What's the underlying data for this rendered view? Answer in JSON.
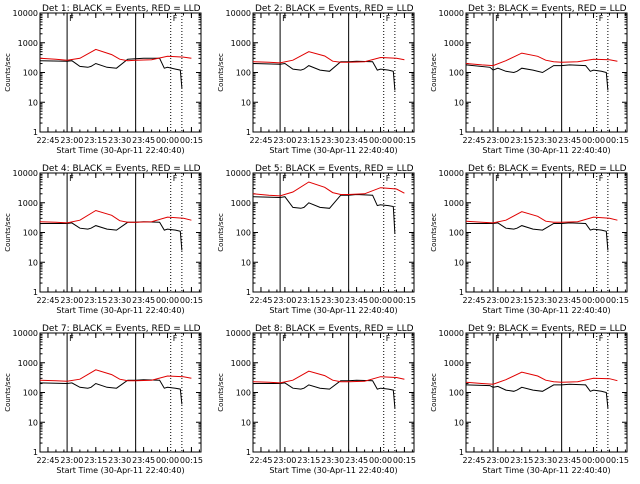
{
  "panel_title_template": "Det {n}: BLACK = Events, RED = LLD",
  "y_axis_label": "Counts/sec",
  "x_axis_label": "Start Time (30-Apr-11 22:40:40)",
  "x_tick_labels": [
    "22:45",
    "23:00",
    "23:15",
    "23:30",
    "23:45",
    "00:00",
    "00:15"
  ],
  "y_tick_labels": [
    "1",
    "10",
    "100",
    "1000",
    "10000"
  ],
  "colors": {
    "events": "#000000",
    "lld": "#e00000",
    "axis": "#000000"
  },
  "chart_data": [
    {
      "type": "line",
      "title": "Det 1: BLACK = Events, RED = LLD",
      "ylim": [
        1,
        10000
      ],
      "yscale": "log",
      "solid_markers": [
        "22:57",
        "23:40"
      ],
      "dotted_markers": [
        "00:02",
        "00:09"
      ],
      "flag_label": "F",
      "series": [
        {
          "name": "BLACK = Events",
          "x": [
            "22:40",
            "22:57",
            "23:00",
            "23:05",
            "23:10",
            "23:12",
            "23:15",
            "23:22",
            "23:28",
            "23:35",
            "23:40",
            "23:45",
            "23:55",
            "23:58",
            "00:00",
            "00:05",
            "00:08",
            "00:09"
          ],
          "y": [
            250,
            240,
            250,
            160,
            150,
            160,
            200,
            150,
            140,
            280,
            290,
            300,
            300,
            140,
            150,
            130,
            120,
            30
          ]
        },
        {
          "name": "RED = LLD",
          "x": [
            "22:40",
            "22:50",
            "22:57",
            "23:05",
            "23:15",
            "23:25",
            "23:30",
            "23:35",
            "23:40",
            "23:50",
            "00:00",
            "00:10",
            "00:15"
          ],
          "y": [
            300,
            280,
            260,
            300,
            600,
            400,
            280,
            250,
            260,
            270,
            350,
            330,
            300
          ]
        }
      ]
    },
    {
      "type": "line",
      "title": "Det 2: BLACK = Events, RED = LLD",
      "ylim": [
        1,
        10000
      ],
      "yscale": "log",
      "solid_markers": [
        "22:57",
        "23:40"
      ],
      "dotted_markers": [
        "00:02",
        "00:09"
      ],
      "flag_label": "F",
      "series": [
        {
          "name": "BLACK = Events",
          "x": [
            "22:40",
            "22:57",
            "23:00",
            "23:05",
            "23:10",
            "23:12",
            "23:15",
            "23:22",
            "23:28",
            "23:35",
            "23:40",
            "23:45",
            "23:55",
            "23:58",
            "00:00",
            "00:05",
            "00:08",
            "00:09"
          ],
          "y": [
            200,
            190,
            200,
            130,
            120,
            130,
            170,
            120,
            110,
            230,
            230,
            240,
            230,
            120,
            130,
            120,
            110,
            25
          ]
        },
        {
          "name": "RED = LLD",
          "x": [
            "22:40",
            "22:50",
            "22:57",
            "23:05",
            "23:15",
            "23:25",
            "23:30",
            "23:35",
            "23:40",
            "23:50",
            "00:00",
            "00:10",
            "00:15"
          ],
          "y": [
            230,
            220,
            210,
            260,
            500,
            360,
            240,
            220,
            220,
            230,
            320,
            300,
            270
          ]
        }
      ]
    },
    {
      "type": "line",
      "title": "Det 3: BLACK = Events, RED = LLD",
      "ylim": [
        1,
        10000
      ],
      "yscale": "log",
      "solid_markers": [
        "22:57",
        "23:40"
      ],
      "dotted_markers": [
        "00:02",
        "00:09"
      ],
      "flag_label": "F",
      "series": [
        {
          "name": "BLACK = Events",
          "x": [
            "22:40",
            "22:55",
            "22:57",
            "23:00",
            "23:05",
            "23:10",
            "23:12",
            "23:15",
            "23:22",
            "23:28",
            "23:35",
            "23:40",
            "23:45",
            "23:55",
            "23:58",
            "00:00",
            "00:05",
            "00:08",
            "00:09"
          ],
          "y": [
            180,
            150,
            120,
            140,
            110,
            100,
            110,
            140,
            120,
            100,
            170,
            170,
            180,
            170,
            110,
            120,
            110,
            100,
            25
          ]
        },
        {
          "name": "RED = LLD",
          "x": [
            "22:40",
            "22:50",
            "22:57",
            "23:05",
            "23:15",
            "23:25",
            "23:30",
            "23:35",
            "23:40",
            "23:50",
            "00:00",
            "00:10",
            "00:15"
          ],
          "y": [
            200,
            180,
            170,
            250,
            450,
            350,
            260,
            230,
            220,
            230,
            280,
            270,
            240
          ]
        }
      ]
    },
    {
      "type": "line",
      "title": "Det 4: BLACK = Events, RED = LLD",
      "ylim": [
        1,
        10000
      ],
      "yscale": "log",
      "solid_markers": [
        "22:57",
        "23:40"
      ],
      "dotted_markers": [
        "00:02",
        "00:09"
      ],
      "flag_label": "F",
      "series": [
        {
          "name": "BLACK = Events",
          "x": [
            "22:40",
            "22:57",
            "23:00",
            "23:05",
            "23:10",
            "23:12",
            "23:15",
            "23:22",
            "23:28",
            "23:35",
            "23:40",
            "23:45",
            "23:55",
            "23:58",
            "00:00",
            "00:05",
            "00:08",
            "00:09"
          ],
          "y": [
            200,
            200,
            210,
            140,
            130,
            140,
            170,
            130,
            120,
            220,
            220,
            230,
            220,
            120,
            130,
            120,
            110,
            25
          ]
        },
        {
          "name": "RED = LLD",
          "x": [
            "22:40",
            "22:50",
            "22:57",
            "23:05",
            "23:15",
            "23:25",
            "23:30",
            "23:35",
            "23:40",
            "23:50",
            "00:00",
            "00:10",
            "00:15"
          ],
          "y": [
            230,
            220,
            210,
            260,
            550,
            380,
            250,
            220,
            220,
            230,
            330,
            300,
            260
          ]
        }
      ]
    },
    {
      "type": "line",
      "title": "Det 5: BLACK = Events, RED = LLD",
      "ylim": [
        1,
        10000
      ],
      "yscale": "log",
      "solid_markers": [
        "22:57",
        "23:40"
      ],
      "dotted_markers": [
        "00:02",
        "00:09"
      ],
      "flag_label": "F",
      "series": [
        {
          "name": "BLACK = Events",
          "x": [
            "22:40",
            "22:57",
            "23:00",
            "23:05",
            "23:10",
            "23:12",
            "23:15",
            "23:22",
            "23:28",
            "23:35",
            "23:40",
            "23:45",
            "23:55",
            "23:58",
            "00:00",
            "00:05",
            "00:08",
            "00:09"
          ],
          "y": [
            1600,
            1500,
            1600,
            700,
            650,
            700,
            1000,
            700,
            650,
            1800,
            1800,
            1900,
            1800,
            800,
            850,
            800,
            750,
            90
          ]
        },
        {
          "name": "RED = LLD",
          "x": [
            "22:40",
            "22:50",
            "22:57",
            "23:05",
            "23:15",
            "23:25",
            "23:30",
            "23:35",
            "23:40",
            "23:50",
            "00:00",
            "00:10",
            "00:15"
          ],
          "y": [
            2000,
            1800,
            1700,
            2300,
            5000,
            3300,
            2200,
            1900,
            1900,
            2000,
            3200,
            2900,
            2100
          ]
        }
      ]
    },
    {
      "type": "line",
      "title": "Det 6: BLACK = Events, RED = LLD",
      "ylim": [
        1,
        10000
      ],
      "yscale": "log",
      "solid_markers": [
        "22:57",
        "23:40"
      ],
      "dotted_markers": [
        "00:02",
        "00:09"
      ],
      "flag_label": "F",
      "series": [
        {
          "name": "BLACK = Events",
          "x": [
            "22:40",
            "22:57",
            "23:00",
            "23:05",
            "23:10",
            "23:12",
            "23:15",
            "23:22",
            "23:28",
            "23:35",
            "23:40",
            "23:45",
            "23:55",
            "23:58",
            "00:00",
            "00:05",
            "00:08",
            "00:09"
          ],
          "y": [
            200,
            200,
            210,
            140,
            130,
            140,
            170,
            130,
            120,
            200,
            200,
            210,
            200,
            120,
            130,
            120,
            110,
            25
          ]
        },
        {
          "name": "RED = LLD",
          "x": [
            "22:40",
            "22:50",
            "22:57",
            "23:05",
            "23:15",
            "23:25",
            "23:30",
            "23:35",
            "23:40",
            "23:50",
            "00:00",
            "00:10",
            "00:15"
          ],
          "y": [
            240,
            220,
            210,
            260,
            500,
            350,
            240,
            220,
            220,
            230,
            330,
            300,
            260
          ]
        }
      ]
    },
    {
      "type": "line",
      "title": "Det 7: BLACK = Events, RED = LLD",
      "ylim": [
        1,
        10000
      ],
      "yscale": "log",
      "solid_markers": [
        "22:57",
        "23:40"
      ],
      "dotted_markers": [
        "00:02",
        "00:09"
      ],
      "flag_label": "F",
      "series": [
        {
          "name": "BLACK = Events",
          "x": [
            "22:40",
            "22:57",
            "23:00",
            "23:05",
            "23:10",
            "23:12",
            "23:15",
            "23:22",
            "23:28",
            "23:35",
            "23:40",
            "23:45",
            "23:55",
            "23:58",
            "00:00",
            "00:05",
            "00:08",
            "00:09"
          ],
          "y": [
            210,
            200,
            210,
            150,
            140,
            150,
            200,
            150,
            140,
            260,
            260,
            270,
            260,
            140,
            150,
            140,
            130,
            40
          ]
        },
        {
          "name": "RED = LLD",
          "x": [
            "22:40",
            "22:50",
            "22:57",
            "23:05",
            "23:15",
            "23:25",
            "23:30",
            "23:35",
            "23:40",
            "23:50",
            "00:00",
            "00:10",
            "00:15"
          ],
          "y": [
            260,
            250,
            240,
            280,
            580,
            400,
            280,
            250,
            250,
            260,
            360,
            340,
            300
          ]
        }
      ]
    },
    {
      "type": "line",
      "title": "Det 8: BLACK = Events, RED = LLD",
      "ylim": [
        1,
        10000
      ],
      "yscale": "log",
      "solid_markers": [
        "22:57",
        "23:40"
      ],
      "dotted_markers": [
        "00:02",
        "00:09"
      ],
      "flag_label": "F",
      "series": [
        {
          "name": "BLACK = Events",
          "x": [
            "22:40",
            "22:57",
            "23:00",
            "23:05",
            "23:10",
            "23:12",
            "23:15",
            "23:22",
            "23:28",
            "23:35",
            "23:40",
            "23:45",
            "23:55",
            "23:58",
            "00:00",
            "00:05",
            "00:08",
            "00:09"
          ],
          "y": [
            200,
            200,
            210,
            140,
            130,
            140,
            180,
            140,
            130,
            250,
            250,
            260,
            250,
            130,
            140,
            130,
            120,
            30
          ]
        },
        {
          "name": "RED = LLD",
          "x": [
            "22:40",
            "22:50",
            "22:57",
            "23:05",
            "23:15",
            "23:25",
            "23:30",
            "23:35",
            "23:40",
            "23:50",
            "00:00",
            "00:10",
            "00:15"
          ],
          "y": [
            230,
            220,
            210,
            260,
            520,
            370,
            260,
            230,
            230,
            240,
            340,
            320,
            280
          ]
        }
      ]
    },
    {
      "type": "line",
      "title": "Det 9: BLACK = Events, RED = LLD",
      "ylim": [
        1,
        10000
      ],
      "yscale": "log",
      "solid_markers": [
        "22:57",
        "23:40"
      ],
      "dotted_markers": [
        "00:02",
        "00:09"
      ],
      "flag_label": "F",
      "series": [
        {
          "name": "BLACK = Events",
          "x": [
            "22:40",
            "22:55",
            "22:57",
            "23:00",
            "23:05",
            "23:10",
            "23:12",
            "23:15",
            "23:22",
            "23:28",
            "23:35",
            "23:40",
            "23:45",
            "23:55",
            "23:58",
            "00:00",
            "00:05",
            "00:08",
            "00:09"
          ],
          "y": [
            180,
            170,
            150,
            160,
            120,
            110,
            120,
            150,
            120,
            110,
            180,
            180,
            190,
            180,
            110,
            120,
            110,
            100,
            30
          ]
        },
        {
          "name": "RED = LLD",
          "x": [
            "22:40",
            "22:50",
            "22:57",
            "23:05",
            "23:15",
            "23:25",
            "23:30",
            "23:35",
            "23:40",
            "23:50",
            "00:00",
            "00:10",
            "00:15"
          ],
          "y": [
            220,
            200,
            190,
            270,
            480,
            360,
            260,
            230,
            220,
            230,
            300,
            290,
            250
          ]
        }
      ]
    }
  ]
}
